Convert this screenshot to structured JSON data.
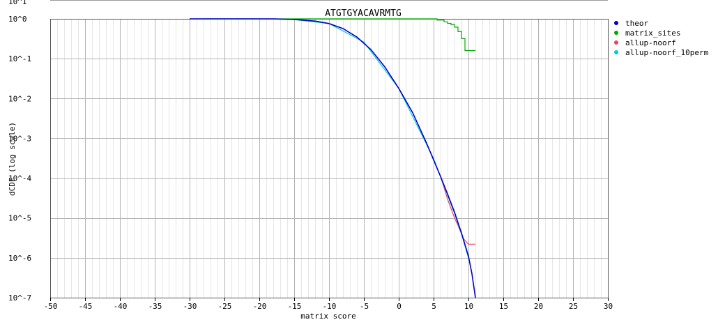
{
  "chart_data": {
    "type": "line",
    "title": "ATGTGYACAVRMTG",
    "xlabel": "matrix score",
    "ylabel": "dCDF (log scale)",
    "log_y": true,
    "xlim": [
      -50,
      30
    ],
    "ylim_log10": [
      -7,
      0
    ],
    "x_ticks": [
      -50,
      -45,
      -40,
      -35,
      -30,
      -25,
      -20,
      -15,
      -10,
      -5,
      0,
      5,
      10,
      15,
      20,
      25,
      30
    ],
    "x_tick_labels": [
      "-50",
      "-45",
      "-40",
      "-35",
      "-30",
      "-25",
      "-20",
      "-15",
      "-10",
      "-5",
      "0",
      "5",
      "10",
      "15",
      "20",
      "25",
      "30"
    ],
    "y_tick_labels": [
      "10^0",
      "10^-1",
      "10^-2",
      "10^-3",
      "10^-4",
      "10^-5",
      "10^-6",
      "10^-7"
    ],
    "top_partial_label": "10^1",
    "grid": true,
    "legend_position": "right",
    "series": [
      {
        "name": "theor",
        "color": "#0000cc",
        "x": [
          -30,
          -25,
          -20,
          -18,
          -15,
          -12,
          -10,
          -8,
          -6,
          -4,
          -2,
          0,
          2,
          4,
          6,
          7,
          8,
          9,
          10,
          10.5,
          11
        ],
        "y": [
          1.0,
          1.0,
          1.0,
          0.995,
          0.96,
          0.88,
          0.76,
          0.57,
          0.35,
          0.17,
          0.062,
          0.018,
          0.0044,
          0.00075,
          0.00011,
          4e-05,
          1.4e-05,
          4.2e-06,
          1.1e-06,
          4e-07,
          1e-07
        ]
      },
      {
        "name": "matrix_sites",
        "color": "#00aa00",
        "x": [
          -18,
          4.5,
          5.5,
          6.5,
          7,
          7.5,
          8,
          8.5,
          9,
          9.5,
          11
        ],
        "y": [
          1.0,
          1.0,
          0.93,
          0.84,
          0.77,
          0.72,
          0.62,
          0.48,
          0.32,
          0.16,
          0.16
        ]
      },
      {
        "name": "allup-noorf",
        "color": "#ee4466",
        "x": [
          6,
          7,
          8,
          8.5,
          9,
          9.3,
          10,
          11
        ],
        "y": [
          0.00011,
          3e-05,
          1e-05,
          6.5e-06,
          4e-06,
          3e-06,
          2.2e-06,
          2.2e-06
        ]
      },
      {
        "name": "allup-noorf_10perm",
        "color": "#00cccc",
        "x": [
          -28,
          -25,
          -20,
          -15,
          -10,
          -5,
          0,
          5,
          8,
          9,
          10,
          10.3
        ],
        "y": [
          1.0,
          1.0,
          1.0,
          0.96,
          0.76,
          0.26,
          0.018,
          0.00031,
          1.3e-05,
          4e-06,
          1e-06,
          6e-07
        ]
      }
    ]
  }
}
